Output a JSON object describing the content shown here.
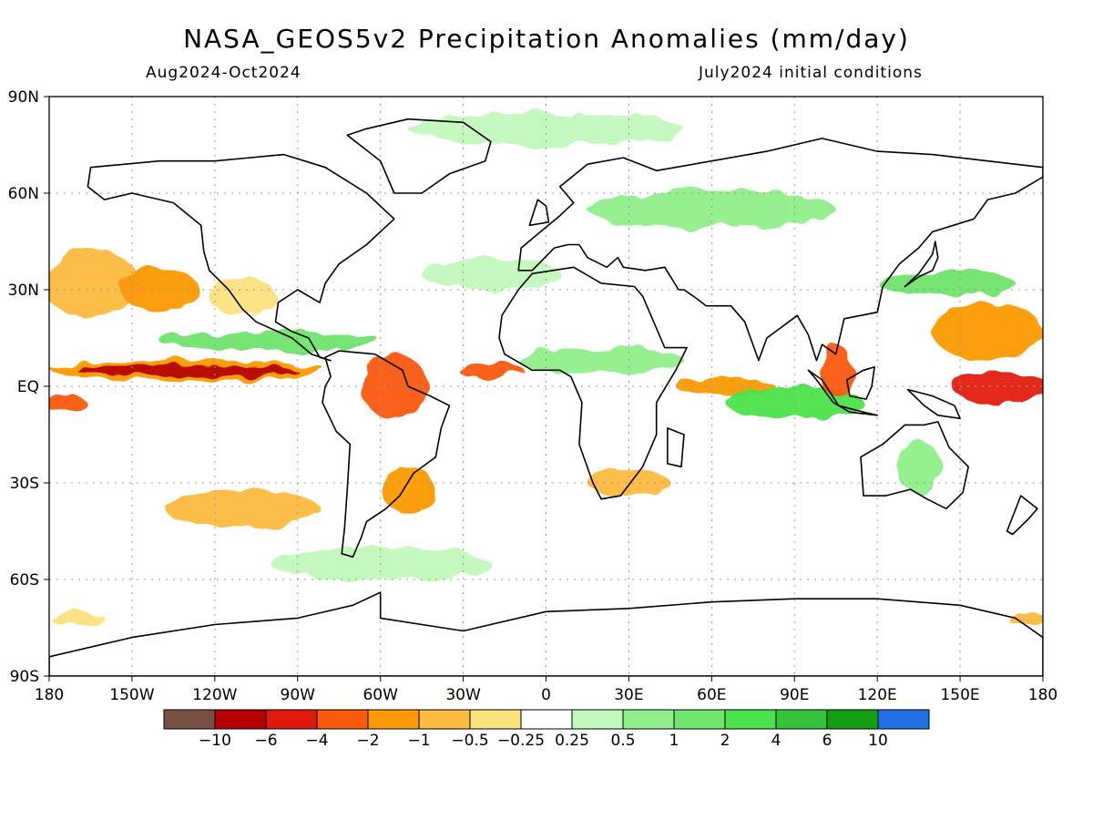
{
  "header": {
    "title": "NASA_GEOS5v2 Precipitation Anomalies (mm/day)",
    "period": "Aug2024-Oct2024",
    "init": "July2024 initial conditions"
  },
  "map": {
    "lon_ticks": [
      "180",
      "150W",
      "120W",
      "90W",
      "60W",
      "30W",
      "0",
      "30E",
      "60E",
      "90E",
      "120E",
      "150E",
      "180"
    ],
    "lat_ticks": [
      "90N",
      "60N",
      "30N",
      "EQ",
      "30S",
      "60S",
      "90S"
    ]
  },
  "colorbar": {
    "colors": [
      "#7a4f43",
      "#b40000",
      "#e01a0a",
      "#fa5a0a",
      "#fb9a06",
      "#fdbb3f",
      "#fde27e",
      "#ffffff",
      "#c2f9bd",
      "#90ef8a",
      "#70e46b",
      "#4be34b",
      "#36c33b",
      "#149f12",
      "#2270e6"
    ],
    "labels": [
      "−10",
      "−6",
      "−4",
      "−2",
      "−1",
      "−0.5",
      "−0.25",
      "0.25",
      "0.5",
      "1",
      "2",
      "4",
      "6",
      "10"
    ]
  },
  "anomaly_regions": [
    {
      "lon": -165,
      "lat": 32,
      "rx": 18,
      "ry": 10,
      "level": "#fdbb3f"
    },
    {
      "lon": -140,
      "lat": 30,
      "rx": 14,
      "ry": 7,
      "level": "#fb9a06"
    },
    {
      "lon": -110,
      "lat": 28,
      "rx": 12,
      "ry": 6,
      "level": "#fde27e"
    },
    {
      "lon": -130,
      "lat": 5,
      "rx": 50,
      "ry": 3,
      "level": "#fb9a06"
    },
    {
      "lon": -130,
      "lat": 5,
      "rx": 40,
      "ry": 1.6,
      "level": "#b40000"
    },
    {
      "lon": -100,
      "lat": 14,
      "rx": 40,
      "ry": 3,
      "level": "#70e46b"
    },
    {
      "lon": -55,
      "lat": 0,
      "rx": 12,
      "ry": 10,
      "level": "#fa5a0a"
    },
    {
      "lon": -50,
      "lat": -32,
      "rx": 10,
      "ry": 7,
      "level": "#fb9a06"
    },
    {
      "lon": -110,
      "lat": -38,
      "rx": 28,
      "ry": 6,
      "level": "#fdbb3f"
    },
    {
      "lon": -20,
      "lat": 5,
      "rx": 12,
      "ry": 2,
      "level": "#fa5a0a"
    },
    {
      "lon": 20,
      "lat": 8,
      "rx": 30,
      "ry": 4,
      "level": "#90ef8a"
    },
    {
      "lon": 65,
      "lat": 0,
      "rx": 18,
      "ry": 3,
      "level": "#fb9a06"
    },
    {
      "lon": 90,
      "lat": -5,
      "rx": 25,
      "ry": 5,
      "level": "#4be34b"
    },
    {
      "lon": 105,
      "lat": 5,
      "rx": 6,
      "ry": 8,
      "level": "#fa5a0a"
    },
    {
      "lon": 160,
      "lat": 17,
      "rx": 20,
      "ry": 9,
      "level": "#fb9a06"
    },
    {
      "lon": 165,
      "lat": 0,
      "rx": 18,
      "ry": 5,
      "level": "#e01a0a"
    },
    {
      "lon": 145,
      "lat": 32,
      "rx": 25,
      "ry": 4,
      "level": "#70e46b"
    },
    {
      "lon": 60,
      "lat": 55,
      "rx": 45,
      "ry": 6,
      "level": "#90ef8a"
    },
    {
      "lon": -20,
      "lat": 35,
      "rx": 25,
      "ry": 5,
      "level": "#c2f9bd"
    },
    {
      "lon": 30,
      "lat": -30,
      "rx": 15,
      "ry": 4,
      "level": "#fdbb3f"
    },
    {
      "lon": 135,
      "lat": -25,
      "rx": 8,
      "ry": 8,
      "level": "#90ef8a"
    },
    {
      "lon": -175,
      "lat": -5,
      "rx": 8,
      "ry": 3,
      "level": "#fa5a0a"
    },
    {
      "lon": -170,
      "lat": -72,
      "rx": 10,
      "ry": 2,
      "level": "#fde27e"
    },
    {
      "lon": 175,
      "lat": -72,
      "rx": 8,
      "ry": 2,
      "level": "#fdbb3f"
    },
    {
      "lon": 0,
      "lat": 80,
      "rx": 50,
      "ry": 5,
      "level": "#c2f9bd"
    },
    {
      "lon": -60,
      "lat": -55,
      "rx": 40,
      "ry": 5,
      "level": "#c2f9bd"
    }
  ],
  "continents": [
    [
      [
        -165,
        68
      ],
      [
        -140,
        70
      ],
      [
        -120,
        70
      ],
      [
        -95,
        72
      ],
      [
        -80,
        68
      ],
      [
        -65,
        60
      ],
      [
        -55,
        52
      ],
      [
        -65,
        44
      ],
      [
        -75,
        38
      ],
      [
        -80,
        32
      ],
      [
        -82,
        26
      ],
      [
        -90,
        30
      ],
      [
        -97,
        26
      ],
      [
        -98,
        20
      ],
      [
        -92,
        17
      ],
      [
        -86,
        15
      ],
      [
        -82,
        9
      ],
      [
        -78,
        8
      ],
      [
        -85,
        10
      ],
      [
        -92,
        15
      ],
      [
        -105,
        20
      ],
      [
        -110,
        24
      ],
      [
        -115,
        30
      ],
      [
        -122,
        36
      ],
      [
        -124,
        42
      ],
      [
        -125,
        50
      ],
      [
        -135,
        57
      ],
      [
        -150,
        60
      ],
      [
        -160,
        58
      ],
      [
        -166,
        62
      ],
      [
        -165,
        68
      ]
    ],
    [
      [
        -80,
        9
      ],
      [
        -75,
        11
      ],
      [
        -62,
        10
      ],
      [
        -52,
        5
      ],
      [
        -50,
        0
      ],
      [
        -42,
        -3
      ],
      [
        -35,
        -6
      ],
      [
        -38,
        -13
      ],
      [
        -40,
        -22
      ],
      [
        -48,
        -27
      ],
      [
        -53,
        -34
      ],
      [
        -58,
        -38
      ],
      [
        -65,
        -42
      ],
      [
        -67,
        -47
      ],
      [
        -70,
        -53
      ],
      [
        -74,
        -52
      ],
      [
        -73,
        -44
      ],
      [
        -72,
        -32
      ],
      [
        -71,
        -18
      ],
      [
        -76,
        -14
      ],
      [
        -81,
        -5
      ],
      [
        -80,
        0
      ],
      [
        -78,
        3
      ],
      [
        -80,
        9
      ]
    ],
    [
      [
        -17,
        15
      ],
      [
        -16,
        22
      ],
      [
        -10,
        30
      ],
      [
        -5,
        35
      ],
      [
        10,
        37
      ],
      [
        20,
        32
      ],
      [
        32,
        31
      ],
      [
        35,
        28
      ],
      [
        43,
        12
      ],
      [
        51,
        12
      ],
      [
        47,
        5
      ],
      [
        40,
        -5
      ],
      [
        40,
        -15
      ],
      [
        35,
        -25
      ],
      [
        27,
        -34
      ],
      [
        20,
        -35
      ],
      [
        17,
        -30
      ],
      [
        12,
        -18
      ],
      [
        13,
        -5
      ],
      [
        9,
        3
      ],
      [
        5,
        5
      ],
      [
        -5,
        5
      ],
      [
        -15,
        10
      ],
      [
        -17,
        15
      ]
    ],
    [
      [
        -10,
        36
      ],
      [
        -9,
        43
      ],
      [
        -2,
        48
      ],
      [
        5,
        53
      ],
      [
        10,
        57
      ],
      [
        5,
        62
      ],
      [
        15,
        69
      ],
      [
        28,
        71
      ],
      [
        40,
        67
      ],
      [
        60,
        70
      ],
      [
        80,
        73
      ],
      [
        100,
        77
      ],
      [
        120,
        73
      ],
      [
        140,
        72
      ],
      [
        160,
        70
      ],
      [
        180,
        68
      ],
      [
        180,
        65
      ],
      [
        170,
        60
      ],
      [
        160,
        58
      ],
      [
        155,
        52
      ],
      [
        140,
        48
      ],
      [
        135,
        43
      ],
      [
        128,
        38
      ],
      [
        122,
        31
      ],
      [
        120,
        23
      ],
      [
        108,
        21
      ],
      [
        105,
        10
      ],
      [
        100,
        13
      ],
      [
        98,
        8
      ],
      [
        95,
        16
      ],
      [
        91,
        22
      ],
      [
        80,
        15
      ],
      [
        77,
        8
      ],
      [
        72,
        20
      ],
      [
        67,
        25
      ],
      [
        58,
        25
      ],
      [
        55,
        27
      ],
      [
        50,
        30
      ],
      [
        48,
        30
      ],
      [
        43,
        37
      ],
      [
        36,
        36
      ],
      [
        28,
        37
      ],
      [
        26,
        40
      ],
      [
        22,
        37
      ],
      [
        15,
        40
      ],
      [
        12,
        44
      ],
      [
        8,
        44
      ],
      [
        3,
        43
      ],
      [
        -5,
        36
      ],
      [
        -10,
        36
      ]
    ],
    [
      [
        114,
        -22
      ],
      [
        122,
        -18
      ],
      [
        130,
        -12
      ],
      [
        137,
        -12
      ],
      [
        142,
        -11
      ],
      [
        146,
        -19
      ],
      [
        153,
        -25
      ],
      [
        151,
        -33
      ],
      [
        145,
        -38
      ],
      [
        138,
        -35
      ],
      [
        132,
        -32
      ],
      [
        123,
        -34
      ],
      [
        115,
        -34
      ],
      [
        114,
        -22
      ]
    ],
    [
      [
        -55,
        60
      ],
      [
        -45,
        60
      ],
      [
        -35,
        66
      ],
      [
        -22,
        70
      ],
      [
        -20,
        76
      ],
      [
        -30,
        82
      ],
      [
        -50,
        83
      ],
      [
        -65,
        80
      ],
      [
        -72,
        78
      ],
      [
        -60,
        70
      ],
      [
        -55,
        60
      ]
    ],
    [
      [
        -180,
        -84
      ],
      [
        -150,
        -78
      ],
      [
        -120,
        -74
      ],
      [
        -90,
        -72
      ],
      [
        -70,
        -68
      ],
      [
        -60,
        -64
      ],
      [
        -60,
        -72
      ],
      [
        -30,
        -76
      ],
      [
        0,
        -70
      ],
      [
        30,
        -69
      ],
      [
        60,
        -67
      ],
      [
        90,
        -66
      ],
      [
        120,
        -66
      ],
      [
        150,
        -68
      ],
      [
        170,
        -72
      ],
      [
        180,
        -78
      ],
      [
        180,
        -90
      ],
      [
        -180,
        -90
      ],
      [
        -180,
        -84
      ]
    ],
    [
      [
        95,
        5
      ],
      [
        100,
        2
      ],
      [
        106,
        -6
      ],
      [
        115,
        -8
      ],
      [
        120,
        -9
      ],
      [
        110,
        -8
      ],
      [
        104,
        -5
      ],
      [
        98,
        2
      ],
      [
        95,
        5
      ]
    ],
    [
      [
        109,
        2
      ],
      [
        115,
        5
      ],
      [
        119,
        6
      ],
      [
        118,
        0
      ],
      [
        116,
        -4
      ],
      [
        110,
        -3
      ],
      [
        109,
        2
      ]
    ],
    [
      [
        131,
        -1
      ],
      [
        140,
        -3
      ],
      [
        148,
        -6
      ],
      [
        150,
        -10
      ],
      [
        142,
        -9
      ],
      [
        137,
        -6
      ],
      [
        131,
        -1
      ]
    ],
    [
      [
        130,
        31
      ],
      [
        135,
        34
      ],
      [
        140,
        36
      ],
      [
        142,
        40
      ],
      [
        141,
        45
      ],
      [
        140,
        41
      ],
      [
        135,
        35
      ],
      [
        130,
        31
      ]
    ],
    [
      [
        -6,
        50
      ],
      [
        -3,
        58
      ],
      [
        0,
        56
      ],
      [
        1,
        51
      ],
      [
        -6,
        50
      ]
    ],
    [
      [
        172,
        -34
      ],
      [
        178,
        -38
      ],
      [
        175,
        -41
      ],
      [
        169,
        -46
      ],
      [
        167,
        -45
      ],
      [
        172,
        -34
      ]
    ],
    [
      [
        44,
        -13
      ],
      [
        50,
        -15
      ],
      [
        49,
        -25
      ],
      [
        44,
        -24
      ],
      [
        44,
        -13
      ]
    ]
  ]
}
